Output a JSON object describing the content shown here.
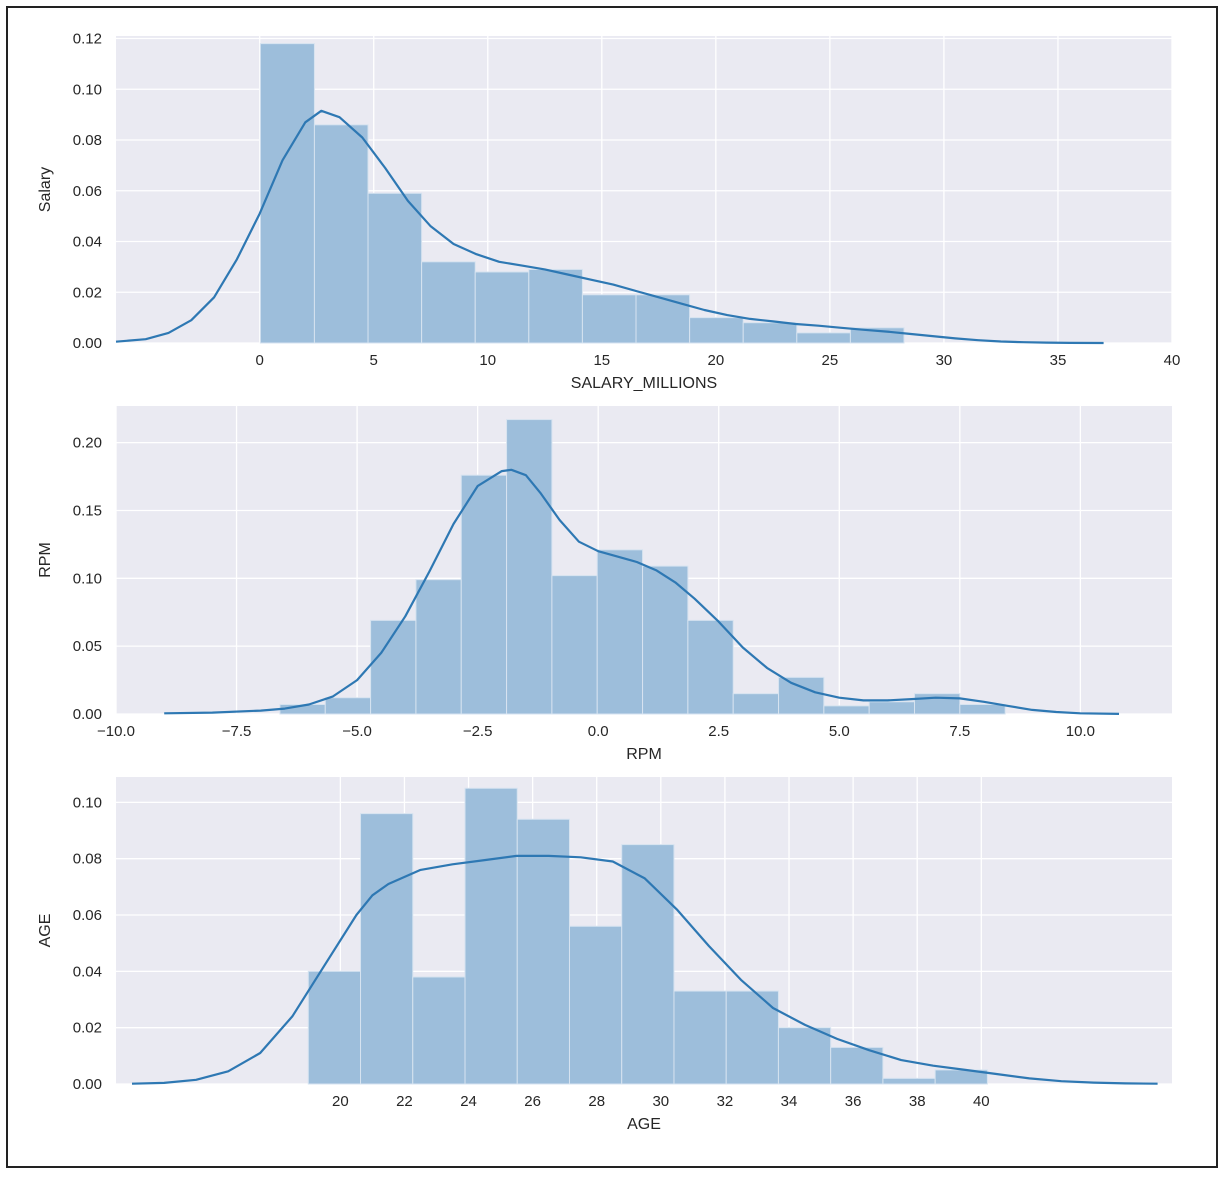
{
  "chart_data": [
    {
      "type": "bar",
      "subtype": "histogram-with-kde",
      "xlabel": "SALARY_MILLIONS",
      "ylabel": "Salary",
      "xlim": [
        -6.3,
        40
      ],
      "ylim": [
        0,
        0.121
      ],
      "xticks": [
        0,
        5,
        10,
        15,
        20,
        25,
        30,
        35,
        40
      ],
      "xtick_labels": [
        "0",
        "5",
        "10",
        "15",
        "20",
        "25",
        "30",
        "35",
        "40"
      ],
      "yticks": [
        0,
        0.02,
        0.04,
        0.06,
        0.08,
        0.1,
        0.12
      ],
      "ytick_labels": [
        "0.00",
        "0.02",
        "0.04",
        "0.06",
        "0.08",
        "0.10",
        "0.12"
      ],
      "grid": true,
      "bin_edges": [
        0.03,
        2.4,
        4.75,
        7.1,
        9.45,
        11.8,
        14.15,
        16.5,
        18.85,
        21.2,
        23.55,
        25.9,
        28.25
      ],
      "values": [
        0.118,
        0.086,
        0.059,
        0.032,
        0.028,
        0.029,
        0.019,
        0.019,
        0.01,
        0.008,
        0.004,
        0.006
      ],
      "kde": {
        "x": [
          -6.3,
          -5,
          -4,
          -3,
          -2,
          -1,
          0,
          1,
          2,
          2.7,
          3.5,
          4.5,
          5.5,
          6.5,
          7.5,
          8.5,
          9.5,
          10.5,
          11.5,
          12.5,
          13.5,
          14.5,
          15.5,
          16.5,
          17.5,
          18.5,
          19.5,
          20.5,
          21.5,
          22.5,
          23.5,
          24.5,
          25.5,
          26.5,
          27.5,
          28.5,
          29.5,
          30.5,
          31.5,
          32.5,
          33.5,
          34.5,
          35.5,
          37
        ],
        "y": [
          0.0005,
          0.0015,
          0.004,
          0.009,
          0.018,
          0.033,
          0.051,
          0.072,
          0.087,
          0.0915,
          0.089,
          0.081,
          0.069,
          0.056,
          0.046,
          0.039,
          0.035,
          0.032,
          0.0305,
          0.029,
          0.027,
          0.025,
          0.023,
          0.0205,
          0.018,
          0.0155,
          0.013,
          0.011,
          0.0095,
          0.0085,
          0.0075,
          0.0068,
          0.006,
          0.0052,
          0.0045,
          0.0036,
          0.0027,
          0.0018,
          0.0011,
          0.0006,
          0.0003,
          0.00015,
          5e-05,
          0
        ]
      }
    },
    {
      "type": "bar",
      "subtype": "histogram-with-kde",
      "xlabel": "RPM",
      "ylabel": "RPM",
      "xlim": [
        -10.0,
        11.9
      ],
      "ylim": [
        0,
        0.227
      ],
      "xticks": [
        -10,
        -7.5,
        -5,
        -2.5,
        0,
        2.5,
        5,
        7.5,
        10
      ],
      "xtick_labels": [
        "−10.0",
        "−7.5",
        "−5.0",
        "−2.5",
        "0.0",
        "2.5",
        "5.0",
        "7.5",
        "10.0"
      ],
      "yticks": [
        0,
        0.05,
        0.1,
        0.15,
        0.2
      ],
      "ytick_labels": [
        "0.00",
        "0.05",
        "0.10",
        "0.15",
        "0.20"
      ],
      "grid": true,
      "bin_edges": [
        -6.6,
        -5.66,
        -4.72,
        -3.78,
        -2.84,
        -1.9,
        -0.96,
        -0.02,
        0.92,
        1.86,
        2.8,
        3.74,
        4.68,
        5.62,
        6.56,
        7.5,
        8.44
      ],
      "values": [
        0.007,
        0.012,
        0.069,
        0.099,
        0.176,
        0.217,
        0.102,
        0.121,
        0.109,
        0.069,
        0.015,
        0.027,
        0.006,
        0.009,
        0.015,
        0.007
      ],
      "kde": {
        "x": [
          -9.0,
          -8.0,
          -7.0,
          -6.5,
          -6.0,
          -5.5,
          -5.0,
          -4.5,
          -4.0,
          -3.5,
          -3.0,
          -2.5,
          -2.0,
          -1.8,
          -1.5,
          -1.2,
          -0.8,
          -0.4,
          0.0,
          0.4,
          0.8,
          1.2,
          1.6,
          2.0,
          2.5,
          3.0,
          3.5,
          4.0,
          4.5,
          5.0,
          5.5,
          6.0,
          6.5,
          7.0,
          7.5,
          8.0,
          8.5,
          9.0,
          9.5,
          10.0,
          10.8
        ],
        "y": [
          0.0005,
          0.001,
          0.0025,
          0.004,
          0.007,
          0.013,
          0.025,
          0.045,
          0.072,
          0.105,
          0.14,
          0.168,
          0.179,
          0.18,
          0.176,
          0.163,
          0.143,
          0.127,
          0.12,
          0.116,
          0.112,
          0.106,
          0.097,
          0.085,
          0.068,
          0.049,
          0.034,
          0.023,
          0.016,
          0.012,
          0.01,
          0.01,
          0.011,
          0.012,
          0.0115,
          0.009,
          0.006,
          0.003,
          0.0015,
          0.0005,
          0.0001
        ]
      }
    },
    {
      "type": "bar",
      "subtype": "histogram-with-kde",
      "xlabel": "AGE",
      "ylabel": "AGE",
      "xlim": [
        13.0,
        45.95
      ],
      "ylim": [
        0,
        0.109
      ],
      "xticks": [
        20,
        22,
        24,
        26,
        28,
        30,
        32,
        34,
        36,
        38,
        40
      ],
      "xtick_labels": [
        "20",
        "22",
        "24",
        "26",
        "28",
        "30",
        "32",
        "34",
        "36",
        "38",
        "40"
      ],
      "yticks": [
        0,
        0.02,
        0.04,
        0.06,
        0.08,
        0.1
      ],
      "ytick_labels": [
        "0.00",
        "0.02",
        "0.04",
        "0.06",
        "0.08",
        "0.10"
      ],
      "grid": true,
      "bin_edges": [
        19.0,
        20.63,
        22.26,
        23.89,
        25.52,
        27.15,
        28.78,
        30.41,
        32.04,
        33.67,
        35.3,
        36.93,
        38.56,
        40.19
      ],
      "values": [
        0.04,
        0.096,
        0.038,
        0.105,
        0.094,
        0.056,
        0.085,
        0.033,
        0.033,
        0.02,
        0.013,
        0.002,
        0.005
      ],
      "kde": {
        "x": [
          13.5,
          14.5,
          15.5,
          16.5,
          17.5,
          18.5,
          19.5,
          20.5,
          21.0,
          21.5,
          22.5,
          23.5,
          24.5,
          25.5,
          26.5,
          27.5,
          28.5,
          29.5,
          30.5,
          31.5,
          32.5,
          33.5,
          34.5,
          35.5,
          36.5,
          37.5,
          38.5,
          39.5,
          40.5,
          41.5,
          42.5,
          43.5,
          44.5,
          45.5
        ],
        "y": [
          0.0001,
          0.0004,
          0.0015,
          0.0045,
          0.011,
          0.024,
          0.042,
          0.06,
          0.067,
          0.071,
          0.076,
          0.078,
          0.0795,
          0.081,
          0.081,
          0.0805,
          0.079,
          0.073,
          0.062,
          0.049,
          0.037,
          0.027,
          0.021,
          0.016,
          0.012,
          0.0085,
          0.0065,
          0.005,
          0.0035,
          0.002,
          0.001,
          0.0005,
          0.0002,
          0.0001
        ]
      }
    }
  ],
  "colors": {
    "panel_background": "#eaeaf2",
    "grid": "#ffffff",
    "bar_fill": "#9dbedb",
    "bar_edge": "#d6e3f0",
    "kde_line": "#2e78b3",
    "text": "#262626"
  }
}
